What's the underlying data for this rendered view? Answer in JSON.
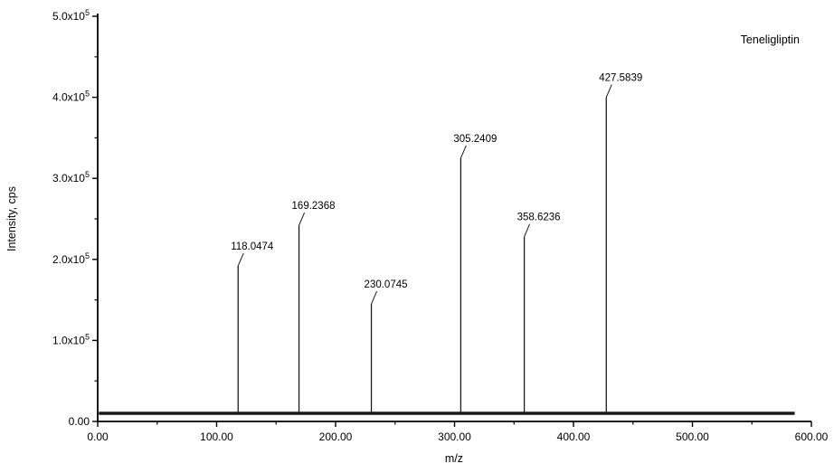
{
  "figure": {
    "annotation": "Teneligliptin",
    "xlabel": "m/z",
    "ylabel": "Intensity, cps"
  },
  "chart_data": {
    "type": "bar",
    "subtype": "mass-spectrum-stick",
    "title": "",
    "annotation": "Teneligliptin",
    "xlabel": "m/z",
    "ylabel": "Intensity, cps",
    "xlim": [
      0,
      600
    ],
    "ylim": [
      0,
      500000
    ],
    "x_major_ticks": [
      0,
      100,
      200,
      300,
      400,
      500,
      600
    ],
    "x_tick_labels": [
      "0.00",
      "100.00",
      "200.00",
      "300.00",
      "400.00",
      "500.00",
      "600.00"
    ],
    "x_minor_step": 50,
    "y_major_ticks": [
      0,
      100000,
      200000,
      300000,
      400000,
      500000
    ],
    "y_tick_labels": [
      "0.00",
      "1.0x10^5",
      "2.0x10^5",
      "3.0x10^5",
      "4.0x10^5",
      "5.0x10^5"
    ],
    "y_minor_step": 50000,
    "grid": false,
    "legend": "none",
    "baseline": {
      "intensity": 10000,
      "mz_start": 1,
      "mz_end": 586
    },
    "peaks": [
      {
        "mz": 118.0474,
        "intensity": 192000,
        "label": "118.0474"
      },
      {
        "mz": 169.2368,
        "intensity": 242000,
        "label": "169.2368"
      },
      {
        "mz": 230.0745,
        "intensity": 145000,
        "label": "230.0745"
      },
      {
        "mz": 305.2409,
        "intensity": 325000,
        "label": "305.2409"
      },
      {
        "mz": 358.6236,
        "intensity": 228000,
        "label": "358.6236"
      },
      {
        "mz": 427.5839,
        "intensity": 400000,
        "label": "427.5839"
      }
    ],
    "colors": {
      "background": "#ffffff",
      "axis": "#000000",
      "stick": "#1a1a1a",
      "text": "#000000"
    }
  }
}
